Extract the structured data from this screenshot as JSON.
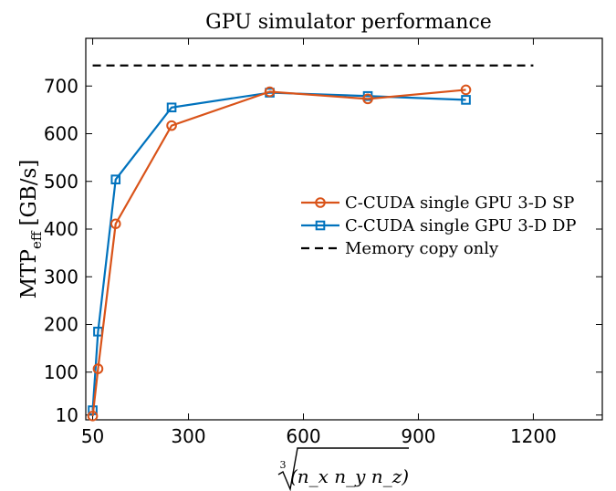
{
  "chart_data": {
    "type": "line",
    "title": "GPU simulator performance",
    "ylabel": "MTP",
    "ylabel_subscript": "eff",
    "ylabel_unit": "[GB/s]",
    "xlabel_root_index": "3",
    "xlabel_radicand": "(n_x n_y n_z)",
    "xlim": [
      32,
      1380
    ],
    "ylim": [
      0,
      800
    ],
    "xticks": [
      50,
      300,
      600,
      900,
      1200
    ],
    "yticks": [
      10,
      100,
      200,
      300,
      400,
      500,
      600,
      700
    ],
    "grid": false,
    "legend_position": "center-right",
    "series": [
      {
        "name": "C-CUDA single GPU 3-D SP",
        "color": "#D95319",
        "marker": "circle",
        "x": [
          50,
          64,
          110,
          256,
          512,
          768,
          1024
        ],
        "y": [
          8,
          107,
          411,
          617,
          688,
          673,
          692
        ]
      },
      {
        "name": "C-CUDA single GPU 3-D DP",
        "color": "#0072BD",
        "marker": "square",
        "x": [
          50,
          64,
          110,
          256,
          512,
          768,
          1024
        ],
        "y": [
          20,
          185,
          504,
          655,
          686,
          679,
          671
        ]
      },
      {
        "name": "Memory copy only",
        "color": "#000000",
        "style": "dashed",
        "x": [
          50,
          1200
        ],
        "y": [
          743,
          743
        ]
      }
    ]
  }
}
